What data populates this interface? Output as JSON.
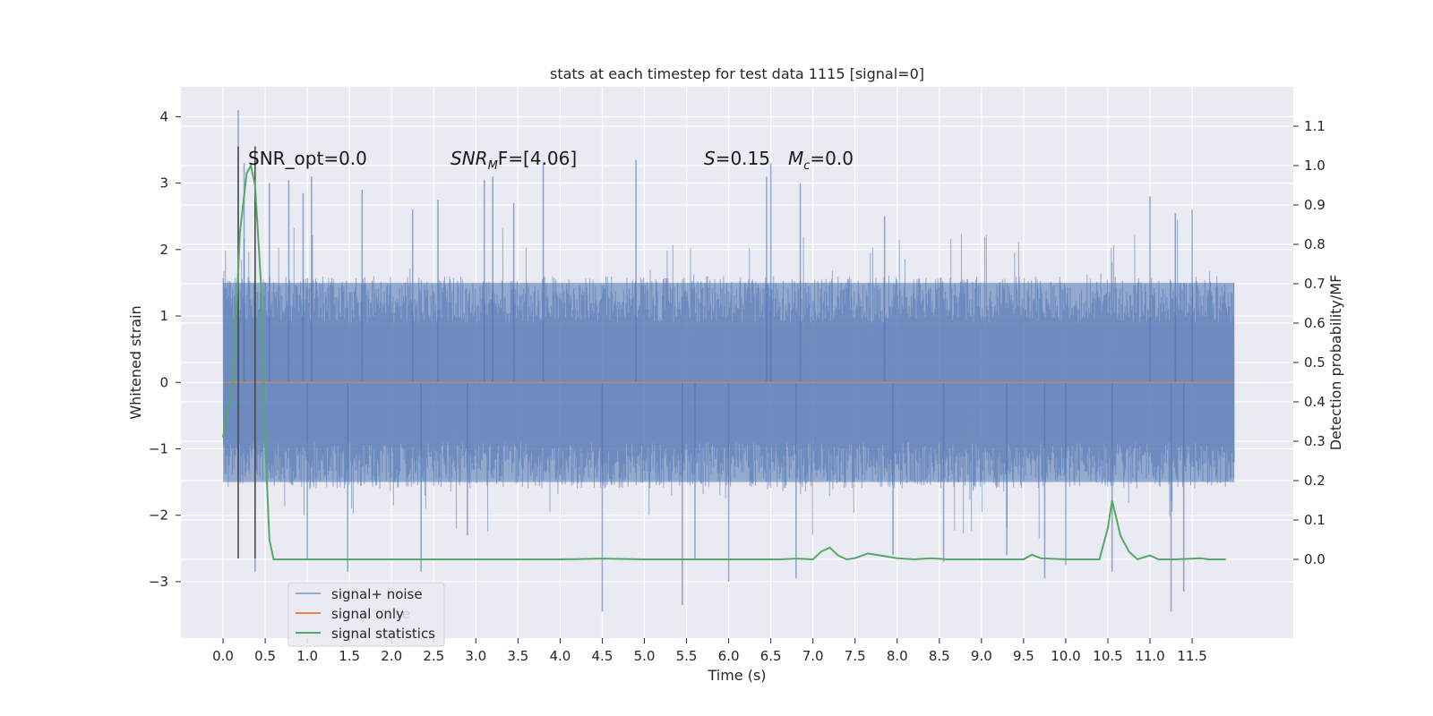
{
  "chart_data": {
    "type": "line",
    "title": "stats at each timestep for test data 1115 [signal=0]",
    "xlabel": "Time (s)",
    "ylabel_left": "Whitened strain",
    "ylabel_right": "Detection probability/MF",
    "xlim": [
      -0.5,
      12.7
    ],
    "ylim_left": [
      -3.85,
      4.45
    ],
    "ylim_right": [
      -0.2,
      1.2
    ],
    "xticks": [
      0.0,
      0.5,
      1.0,
      1.5,
      2.0,
      2.5,
      3.0,
      3.5,
      4.0,
      4.5,
      5.0,
      5.5,
      6.0,
      6.5,
      7.0,
      7.5,
      8.0,
      8.5,
      9.0,
      9.5,
      10.0,
      10.5,
      11.0,
      11.5
    ],
    "xtick_labels": [
      "0.0",
      "0.5",
      "1.0",
      "1.5",
      "2.0",
      "2.5",
      "3.0",
      "3.5",
      "4.0",
      "4.5",
      "5.0",
      "5.5",
      "6.0",
      "6.5",
      "7.0",
      "7.5",
      "8.0",
      "8.5",
      "9.0",
      "9.5",
      "10.0",
      "10.5",
      "11.0",
      "11.5"
    ],
    "yticks_left": [
      4,
      3,
      2,
      1,
      0,
      -1,
      -2,
      -3
    ],
    "ytick_labels_left": [
      "4",
      "3",
      "2",
      "1",
      "0",
      "−1",
      "−2",
      "−3"
    ],
    "yticks_right": [
      1.1,
      1.0,
      0.9,
      0.8,
      0.7,
      0.6,
      0.5,
      0.4,
      0.3,
      0.2,
      0.1,
      0.0
    ],
    "ytick_labels_right": [
      "1.1",
      "1.0",
      "0.9",
      "0.8",
      "0.7",
      "0.6",
      "0.5",
      "0.4",
      "0.3",
      "0.2",
      "0.1",
      "0.0"
    ],
    "grid": true,
    "legend_position": "lower-left",
    "series": [
      {
        "name": "signal+ noise",
        "color": "#4c72b0",
        "axis": "left",
        "style": "dense-noise",
        "x_range": [
          0.0,
          12.0
        ],
        "core_amplitude": [
          -1.5,
          1.5
        ],
        "spikes": [
          {
            "x": 0.18,
            "y": 4.1
          },
          {
            "x": 0.25,
            "y": 3.3
          },
          {
            "x": 0.55,
            "y": 3.0
          },
          {
            "x": 0.78,
            "y": 3.05
          },
          {
            "x": 0.95,
            "y": 2.85
          },
          {
            "x": 1.05,
            "y": 3.1
          },
          {
            "x": 1.65,
            "y": 2.9
          },
          {
            "x": 2.25,
            "y": 2.6
          },
          {
            "x": 2.55,
            "y": 2.75
          },
          {
            "x": 3.1,
            "y": 3.05
          },
          {
            "x": 3.2,
            "y": 3.1
          },
          {
            "x": 3.45,
            "y": 2.7
          },
          {
            "x": 3.8,
            "y": 3.3
          },
          {
            "x": 4.9,
            "y": 3.35
          },
          {
            "x": 6.45,
            "y": 3.1
          },
          {
            "x": 6.5,
            "y": 3.3
          },
          {
            "x": 6.85,
            "y": 3.0
          },
          {
            "x": 7.85,
            "y": 2.5
          },
          {
            "x": 11.0,
            "y": 2.8
          },
          {
            "x": 11.3,
            "y": 2.55
          },
          {
            "x": 11.5,
            "y": 2.6
          },
          {
            "x": 0.38,
            "y": -2.85
          },
          {
            "x": 1.0,
            "y": -2.65
          },
          {
            "x": 1.48,
            "y": -2.85
          },
          {
            "x": 2.35,
            "y": -2.85
          },
          {
            "x": 2.9,
            "y": -2.3
          },
          {
            "x": 4.5,
            "y": -3.45
          },
          {
            "x": 5.45,
            "y": -3.35
          },
          {
            "x": 5.6,
            "y": -2.65
          },
          {
            "x": 6.0,
            "y": -3.0
          },
          {
            "x": 6.8,
            "y": -2.95
          },
          {
            "x": 7.95,
            "y": -2.6
          },
          {
            "x": 8.55,
            "y": -2.7
          },
          {
            "x": 9.3,
            "y": -2.6
          },
          {
            "x": 9.75,
            "y": -2.95
          },
          {
            "x": 10.0,
            "y": -2.75
          },
          {
            "x": 10.55,
            "y": -2.85
          },
          {
            "x": 11.25,
            "y": -3.45
          },
          {
            "x": 11.4,
            "y": -3.15
          }
        ]
      },
      {
        "name": "signal only",
        "color": "#dd8452",
        "axis": "left",
        "x": [
          0.0,
          12.0
        ],
        "y": [
          0.0,
          0.0
        ]
      },
      {
        "name": "signal statistics",
        "color": "#55a868",
        "axis": "right",
        "x": [
          0.0,
          0.12,
          0.2,
          0.28,
          0.33,
          0.38,
          0.45,
          0.5,
          0.55,
          0.6,
          1.0,
          2.0,
          3.0,
          4.0,
          4.5,
          5.0,
          6.0,
          6.6,
          6.8,
          7.0,
          7.1,
          7.2,
          7.3,
          7.4,
          7.5,
          7.65,
          7.8,
          8.0,
          8.2,
          8.4,
          8.6,
          9.0,
          9.5,
          9.6,
          9.7,
          10.0,
          10.4,
          10.5,
          10.55,
          10.65,
          10.75,
          10.85,
          11.0,
          11.1,
          11.3,
          11.6,
          11.7,
          11.9
        ],
        "y": [
          0.31,
          0.45,
          0.83,
          0.98,
          1.0,
          0.95,
          0.7,
          0.3,
          0.05,
          0.0,
          0.0,
          0.0,
          0.0,
          0.0,
          0.002,
          0.0,
          0.0,
          0.0,
          0.002,
          0.0,
          0.02,
          0.03,
          0.01,
          0.0,
          0.003,
          0.015,
          0.01,
          0.003,
          0.0,
          0.003,
          0.0,
          0.0,
          0.0,
          0.012,
          0.003,
          0.0,
          0.0,
          0.08,
          0.15,
          0.06,
          0.02,
          0.0,
          0.01,
          0.0,
          0.0,
          0.003,
          0.0,
          0.0
        ]
      }
    ],
    "vertical_markers": [
      {
        "x": 0.18,
        "y_range": [
          -2.65,
          3.55
        ],
        "color": "#444444"
      },
      {
        "x": 0.38,
        "y_range": [
          -2.65,
          3.55
        ],
        "color": "#444444"
      }
    ],
    "annotations": [
      {
        "key": "snr_opt",
        "text": "SNR_opt=0.0"
      },
      {
        "key": "snr_mf_label",
        "text": "SNR",
        "sub": "M",
        "tail": "F=[4.06]"
      },
      {
        "key": "s_label",
        "text": "S",
        "tail": "=0.15"
      },
      {
        "key": "mc_label",
        "text": "M",
        "sub": "c",
        "tail": "=0.0"
      }
    ],
    "legend_partial_text": "se"
  }
}
